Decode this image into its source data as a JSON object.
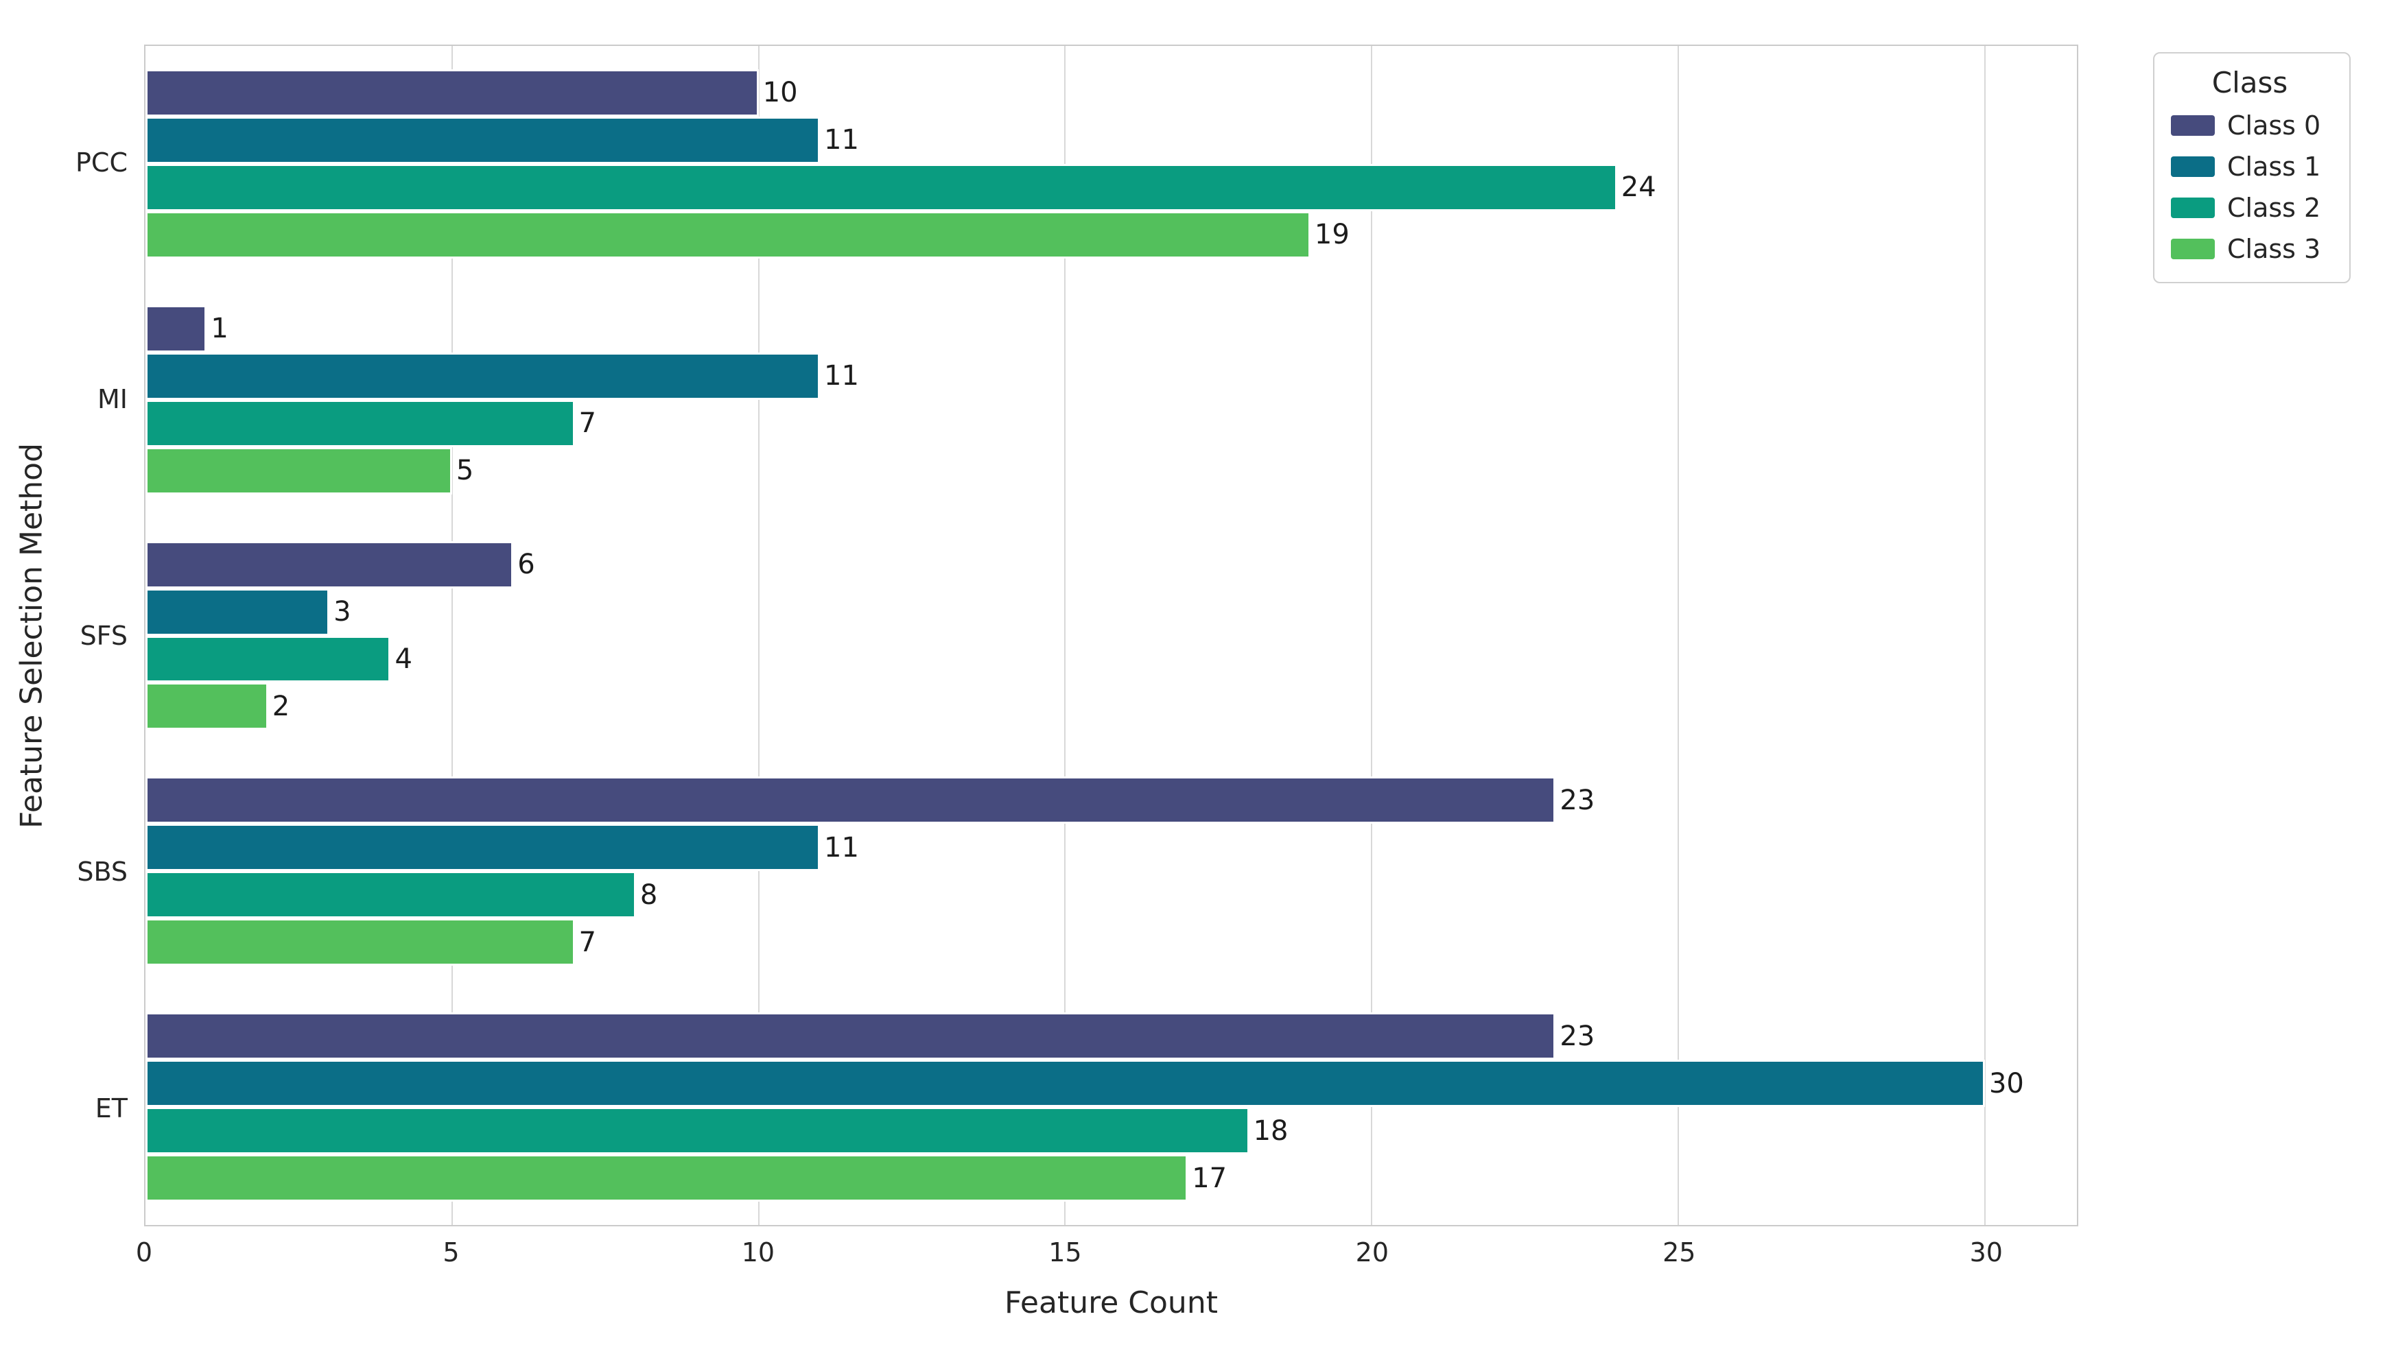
{
  "chart_data": {
    "type": "bar",
    "orientation": "horizontal",
    "title": "",
    "xlabel": "Feature Count",
    "ylabel": "Feature Selection Method",
    "categories": [
      "PCC",
      "MI",
      "SFS",
      "SBS",
      "ET"
    ],
    "series": [
      {
        "name": "Class 0",
        "color": "#464B7D",
        "values": [
          10,
          1,
          6,
          23,
          23
        ]
      },
      {
        "name": "Class 1",
        "color": "#0B6E87",
        "values": [
          11,
          11,
          3,
          11,
          30
        ]
      },
      {
        "name": "Class 2",
        "color": "#0A9C80",
        "values": [
          24,
          7,
          4,
          8,
          18
        ]
      },
      {
        "name": "Class 3",
        "color": "#53C05C",
        "values": [
          19,
          5,
          2,
          7,
          17
        ]
      }
    ],
    "xlim": [
      0,
      31.5
    ],
    "xticks": [
      0,
      5,
      10,
      15,
      20,
      25,
      30
    ],
    "grid": "vertical-only",
    "bar_labels": true,
    "legend": {
      "title": "Class",
      "position": "outside-upper-right"
    }
  },
  "colors": {
    "grid": "#D8D8D8",
    "spine": "#CBCBCB",
    "text": "#262626",
    "bar_edge": "#FFFFFF",
    "legend_border": "#D0D0D0",
    "background": "#FFFFFF"
  }
}
